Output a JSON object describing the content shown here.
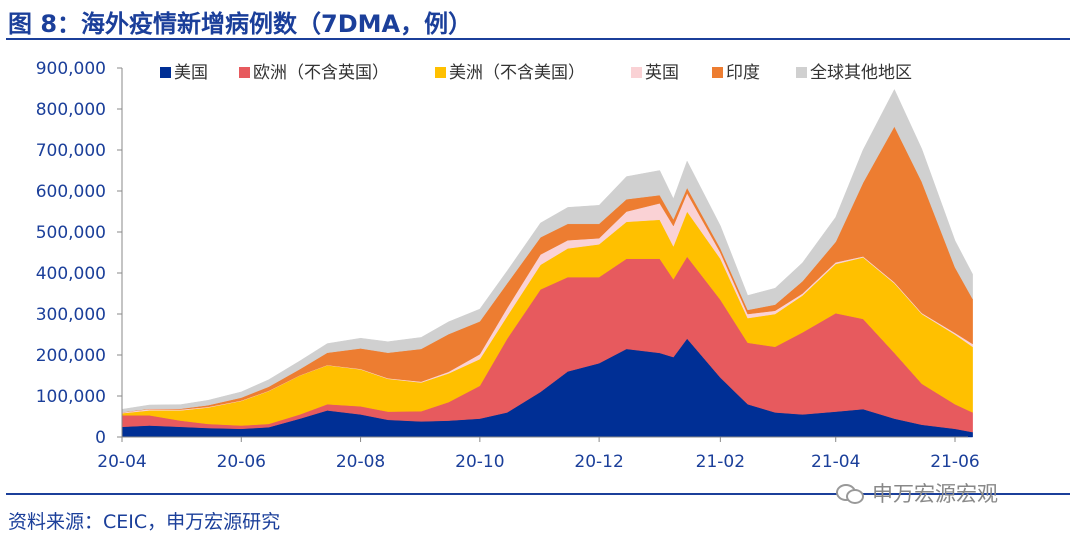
{
  "title": "图 8：海外疫情新增病例数（7DMA，例）",
  "source": "资料来源：CEIC，申万宏源研究",
  "watermark": "申万宏源宏观",
  "chart_data": {
    "type": "area",
    "stacked": true,
    "ylim": [
      0,
      900000
    ],
    "yticks": [
      "0",
      "100,000",
      "200,000",
      "300,000",
      "400,000",
      "500,000",
      "600,000",
      "700,000",
      "800,000",
      "900,000"
    ],
    "ytick_values": [
      0,
      100000,
      200000,
      300000,
      400000,
      500000,
      600000,
      700000,
      800000,
      900000
    ],
    "xticks": [
      "20-04",
      "20-06",
      "20-08",
      "20-10",
      "20-12",
      "21-02",
      "21-04",
      "21-06"
    ],
    "x": [
      "20-04-01",
      "20-04-15",
      "20-05-01",
      "20-05-15",
      "20-06-01",
      "20-06-15",
      "20-07-01",
      "20-07-15",
      "20-08-01",
      "20-08-15",
      "20-09-01",
      "20-09-15",
      "20-10-01",
      "20-10-15",
      "20-11-01",
      "20-11-15",
      "20-12-01",
      "20-12-15",
      "21-01-01",
      "21-01-08",
      "21-01-15",
      "21-02-01",
      "21-02-15",
      "21-03-01",
      "21-03-15",
      "21-04-01",
      "21-04-15",
      "21-05-01",
      "21-05-15",
      "21-06-01",
      "21-06-10"
    ],
    "legend_position": "top",
    "series": [
      {
        "name": "美国",
        "color": "#002f95",
        "values": [
          25000,
          28000,
          25000,
          22000,
          20000,
          24000,
          45000,
          65000,
          55000,
          42000,
          38000,
          40000,
          45000,
          60000,
          110000,
          160000,
          180000,
          215000,
          205000,
          195000,
          240000,
          145000,
          80000,
          60000,
          55000,
          62000,
          68000,
          45000,
          30000,
          20000,
          12000
        ]
      },
      {
        "name": "欧洲（不含英国）",
        "color": "#e75a5e",
        "values": [
          28000,
          25000,
          15000,
          10000,
          8000,
          8000,
          10000,
          15000,
          20000,
          20000,
          25000,
          45000,
          80000,
          180000,
          250000,
          230000,
          210000,
          220000,
          230000,
          190000,
          200000,
          190000,
          150000,
          160000,
          200000,
          240000,
          220000,
          160000,
          100000,
          60000,
          48000
        ]
      },
      {
        "name": "美洲（不含美国）",
        "color": "#ffc000",
        "values": [
          5000,
          12000,
          25000,
          40000,
          60000,
          80000,
          95000,
          95000,
          90000,
          80000,
          70000,
          70000,
          65000,
          55000,
          60000,
          70000,
          80000,
          90000,
          95000,
          80000,
          110000,
          100000,
          60000,
          80000,
          90000,
          120000,
          150000,
          170000,
          170000,
          170000,
          160000
        ]
      },
      {
        "name": "英国",
        "color": "#fad2d5",
        "values": [
          2000,
          3000,
          2000,
          1500,
          1000,
          800,
          600,
          700,
          1000,
          1500,
          2000,
          4000,
          12000,
          20000,
          25000,
          20000,
          15000,
          25000,
          40000,
          50000,
          45000,
          15000,
          10000,
          8000,
          5000,
          4000,
          2500,
          2500,
          2500,
          4000,
          7000
        ]
      },
      {
        "name": "印度",
        "color": "#ed7d31",
        "values": [
          500,
          1000,
          2000,
          4000,
          7000,
          10000,
          15000,
          30000,
          50000,
          62000,
          80000,
          92000,
          80000,
          60000,
          42000,
          40000,
          35000,
          30000,
          20000,
          16000,
          13000,
          10000,
          10000,
          15000,
          30000,
          50000,
          180000,
          380000,
          320000,
          160000,
          110000
        ]
      },
      {
        "name": "全球其他地区",
        "color": "#d0d0d0",
        "values": [
          7000,
          9000,
          10000,
          12000,
          14000,
          17000,
          20000,
          22000,
          25000,
          27000,
          28000,
          30000,
          30000,
          30000,
          35000,
          40000,
          45000,
          55000,
          60000,
          50000,
          65000,
          55000,
          35000,
          40000,
          45000,
          60000,
          80000,
          90000,
          80000,
          65000,
          60000
        ]
      }
    ]
  }
}
